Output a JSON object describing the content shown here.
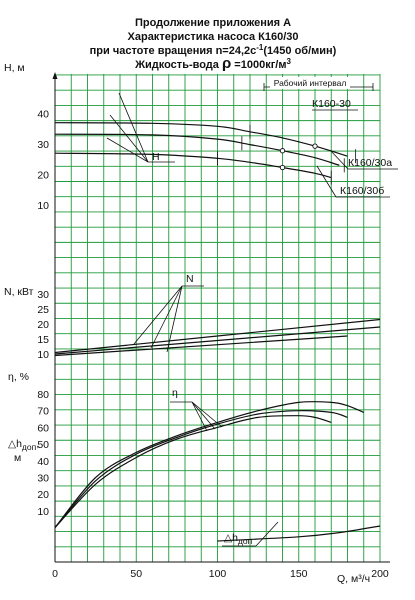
{
  "title": {
    "line1": "Продолжение приложения А",
    "line2": "Характеристика насоса К160/30",
    "line3a": "при частоте вращения n=24,2с",
    "line3sup": "-1",
    "line3b": "(1450 об/мин)",
    "line4a": "Жидкость-вода ",
    "line4rho": "ρ",
    "line4b": " =1000кг/м",
    "line4sup": "3"
  },
  "axes": {
    "x": {
      "label": "Q, м³/ч",
      "ticks": [
        0,
        50,
        100,
        150,
        200
      ],
      "range": [
        0,
        200
      ]
    },
    "H": {
      "label": "H, м",
      "ticks": [
        10,
        20,
        30,
        40
      ],
      "range": [
        0,
        40
      ]
    },
    "N": {
      "label": "N, кВт",
      "ticks": [
        10,
        15,
        20,
        25,
        30
      ],
      "range": [
        5,
        30
      ]
    },
    "eta": {
      "label": "η, %",
      "ticks": [
        10,
        20,
        30,
        40,
        50,
        60,
        70,
        80
      ],
      "range": [
        0,
        85
      ]
    },
    "dh": {
      "label_a": "△h",
      "label_sub": "доп",
      "label_c": ",",
      "label_unit": "м",
      "range": [
        0,
        10
      ]
    }
  },
  "annotations": {
    "working_interval": "Рабочий интервал",
    "k160_30": "К160-30",
    "k160_30a": "К160/30а",
    "k160_30b": "К160/30б",
    "H_leader": "H",
    "N_leader": "N",
    "eta_leader": "η",
    "dh_leader_a": "△h",
    "dh_leader_sub": "доп"
  },
  "chart_data": {
    "type": "line",
    "x_unit": "м³/ч",
    "grid": true,
    "panels": [
      {
        "name": "H",
        "ylabel": "H, м",
        "ylim": [
          0,
          40
        ],
        "series": [
          {
            "name": "К160-30",
            "x": [
              0,
              60,
              100,
              120,
              140,
              160,
              180
            ],
            "values": [
              37,
              36.8,
              35.8,
              34,
              32,
              29.3,
              26
            ]
          },
          {
            "name": "К160/30а",
            "x": [
              0,
              60,
              100,
              120,
              140,
              160,
              175
            ],
            "values": [
              33.2,
              33,
              31.6,
              29.8,
              27.8,
              25.5,
              23
            ]
          },
          {
            "name": "К160/30б",
            "x": [
              0,
              60,
              100,
              120,
              140,
              160,
              170
            ],
            "values": [
              27,
              26.6,
              25.3,
              24,
              22.3,
              20.4,
              19
            ]
          }
        ]
      },
      {
        "name": "N",
        "ylabel": "N, кВт",
        "ylim": [
          5,
          30
        ],
        "series": [
          {
            "name": "К160-30",
            "x": [
              0,
              200
            ],
            "values": [
              10.5,
              21.5
            ]
          },
          {
            "name": "К160/30а",
            "x": [
              0,
              200
            ],
            "values": [
              10,
              19
            ]
          },
          {
            "name": "К160/30б",
            "x": [
              0,
              180
            ],
            "values": [
              9.5,
              16
            ]
          }
        ]
      },
      {
        "name": "eta",
        "ylabel": "η, %",
        "ylim": [
          0,
          85
        ],
        "series": [
          {
            "name": "К160-30",
            "x": [
              0,
              25,
              50,
              75,
              100,
              125,
              150,
              170,
              180,
              190
            ],
            "values": [
              0,
              30,
              45,
              55,
              63,
              70,
              75,
              75,
              73,
              69
            ]
          },
          {
            "name": "К160/30а",
            "x": [
              0,
              25,
              50,
              75,
              100,
              125,
              150,
              170,
              180
            ],
            "values": [
              0,
              28,
              44,
              54,
              62,
              68,
              70,
              69,
              66
            ]
          },
          {
            "name": "К160/30б",
            "x": [
              0,
              25,
              50,
              75,
              100,
              125,
              150,
              160,
              170
            ],
            "values": [
              0,
              26,
              42,
              53,
              60,
              66,
              67,
              66,
              63
            ]
          }
        ]
      },
      {
        "name": "dh",
        "ylabel": "△h доп, м",
        "ylim": [
          0,
          10
        ],
        "series": [
          {
            "name": "△h доп",
            "x": [
              100,
              150,
              175,
              200
            ],
            "values": [
              3.5,
              4.2,
              4.9,
              6
            ]
          }
        ]
      }
    ]
  }
}
